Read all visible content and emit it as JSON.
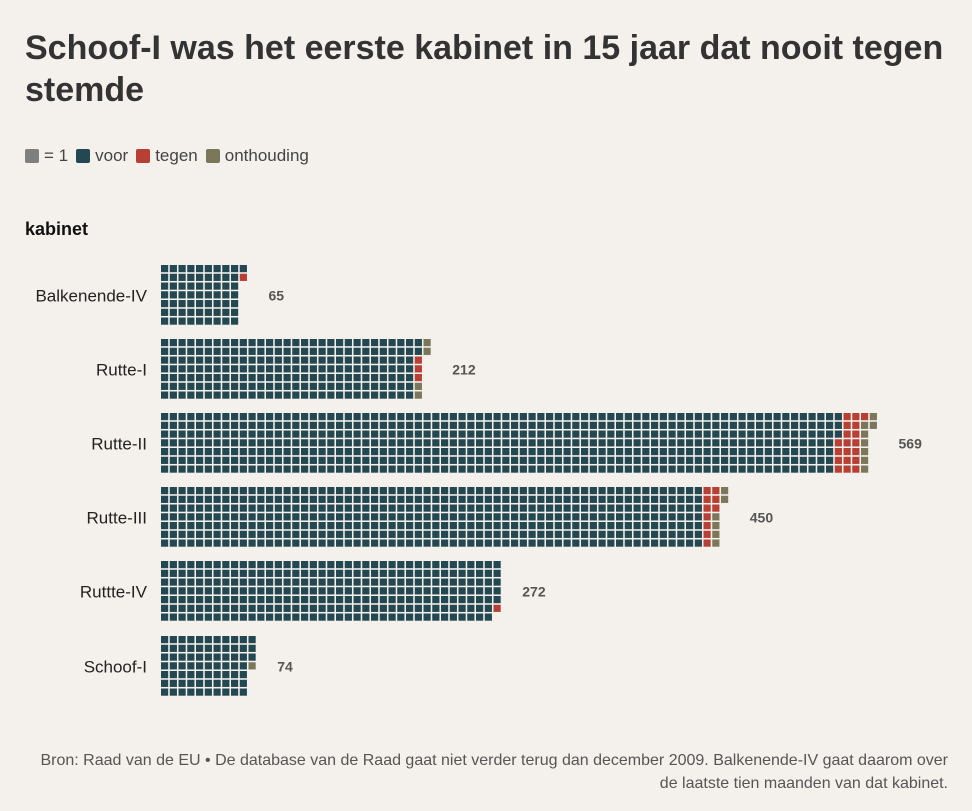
{
  "title": "Schoof-I was het eerste kabinet in 15 jaar dat nooit tegen stemde",
  "legend": {
    "unit_label": "= 1",
    "items": [
      {
        "label": "voor",
        "color": "#234852"
      },
      {
        "label": "tegen",
        "color": "#b73f33"
      },
      {
        "label": "onthouding",
        "color": "#7b775a"
      }
    ],
    "unit_color": "#7f7f7f"
  },
  "axis_title": "kabinet",
  "chart_data": {
    "type": "waffle-bar",
    "rows_per_column": 7,
    "categories": [
      "Balkenende-IV",
      "Rutte-I",
      "Rutte-II",
      "Rutte-III",
      "Ruttte-IV",
      "Schoof-I"
    ],
    "totals": [
      65,
      212,
      569,
      450,
      272,
      74
    ],
    "series": [
      {
        "name": "voor",
        "color": "#234852",
        "values": [
          64,
          205,
          542,
          434,
          271,
          73
        ]
      },
      {
        "name": "tegen",
        "color": "#b73f33",
        "values": [
          1,
          3,
          19,
          10,
          1,
          0
        ]
      },
      {
        "name": "onthouding",
        "color": "#7b775a",
        "values": [
          0,
          4,
          8,
          6,
          0,
          1
        ]
      }
    ]
  },
  "source": "Bron: Raad van de EU • De database van de Raad gaat niet verder terug dan december 2009. Balkenende-IV gaat daarom over de laatste tien maanden van dat kabinet."
}
